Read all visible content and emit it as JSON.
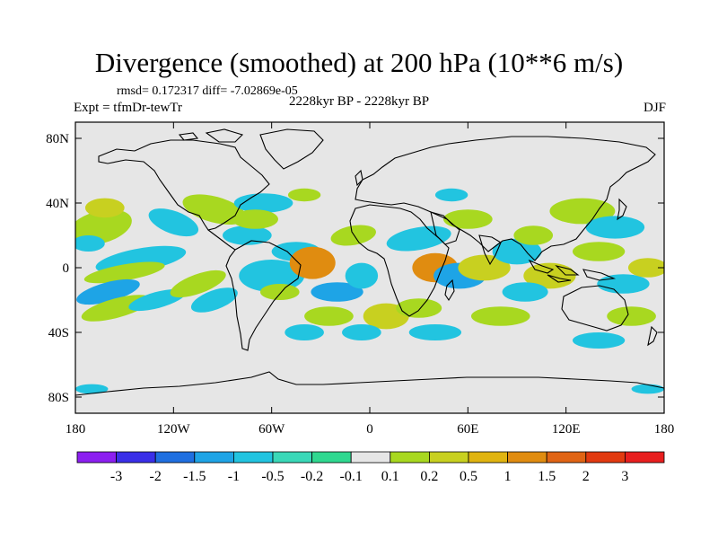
{
  "title": "Divergence (smoothed) at 200 hPa (10**6 m/s)",
  "stats": "rmsd= 0.172317 diff= -7.02869e-05",
  "expt": "Expt = tfmDr-tewTr",
  "period": "2228kyr BP - 2228kyr BP",
  "season": "DJF",
  "lat_labels": [
    "80N",
    "40N",
    "0",
    "40S",
    "80S"
  ],
  "lat_values": [
    80,
    40,
    0,
    -40,
    -80
  ],
  "lon_labels": [
    "180",
    "120W",
    "60W",
    "0",
    "60E",
    "120E",
    "180"
  ],
  "lon_values": [
    -180,
    -120,
    -60,
    0,
    60,
    120,
    180
  ],
  "colorbar": {
    "colors": [
      "#8c1ff0",
      "#3a2fe8",
      "#1f6fe0",
      "#1ea4e6",
      "#22c4e0",
      "#3ad8b8",
      "#2fd890",
      "#e6e6e6",
      "#a8d820",
      "#c8d020",
      "#e0b410",
      "#e08c10",
      "#e06414",
      "#e23a10",
      "#e81e1e"
    ],
    "labels": [
      "-3",
      "-2",
      "-1.5",
      "-1",
      "-0.5",
      "-0.2",
      "-0.1",
      "0.1",
      "0.2",
      "0.5",
      "1",
      "1.5",
      "2",
      "3"
    ]
  },
  "map_background": "#e6e6e6",
  "blobs": [
    {
      "lon": -165,
      "lat": 25,
      "rx": 20,
      "ry": 10,
      "level": "pos1",
      "rot": -15
    },
    {
      "lon": -162,
      "lat": 37,
      "rx": 12,
      "ry": 6,
      "level": "pos2",
      "rot": 0
    },
    {
      "lon": -172,
      "lat": 15,
      "rx": 10,
      "ry": 5,
      "level": "neg1",
      "rot": 0
    },
    {
      "lon": -140,
      "lat": 5,
      "rx": 28,
      "ry": 7,
      "level": "neg1",
      "rot": -10
    },
    {
      "lon": -150,
      "lat": -3,
      "rx": 25,
      "ry": 5,
      "level": "pos1",
      "rot": -10
    },
    {
      "lon": -160,
      "lat": -15,
      "rx": 20,
      "ry": 6,
      "level": "neg2",
      "rot": -15
    },
    {
      "lon": -155,
      "lat": -25,
      "rx": 22,
      "ry": 6,
      "level": "pos1",
      "rot": -15
    },
    {
      "lon": -130,
      "lat": -20,
      "rx": 18,
      "ry": 5,
      "level": "neg1",
      "rot": -15
    },
    {
      "lon": -105,
      "lat": -10,
      "rx": 18,
      "ry": 6,
      "level": "pos1",
      "rot": -20
    },
    {
      "lon": -95,
      "lat": -20,
      "rx": 15,
      "ry": 6,
      "level": "neg1",
      "rot": -20
    },
    {
      "lon": -120,
      "lat": 28,
      "rx": 16,
      "ry": 7,
      "level": "neg1",
      "rot": 20
    },
    {
      "lon": -95,
      "lat": 36,
      "rx": 20,
      "ry": 8,
      "level": "pos1",
      "rot": 15
    },
    {
      "lon": -75,
      "lat": 20,
      "rx": 15,
      "ry": 6,
      "level": "neg1",
      "rot": 0
    },
    {
      "lon": -65,
      "lat": 40,
      "rx": 18,
      "ry": 6,
      "level": "neg1",
      "rot": 0
    },
    {
      "lon": -70,
      "lat": 30,
      "rx": 14,
      "ry": 6,
      "level": "pos1",
      "rot": 0
    },
    {
      "lon": -40,
      "lat": 45,
      "rx": 10,
      "ry": 4,
      "level": "pos1",
      "rot": 0
    },
    {
      "lon": -60,
      "lat": -5,
      "rx": 20,
      "ry": 10,
      "level": "neg1",
      "rot": 0
    },
    {
      "lon": -45,
      "lat": 10,
      "rx": 15,
      "ry": 6,
      "level": "neg1",
      "rot": 0
    },
    {
      "lon": -35,
      "lat": 3,
      "rx": 14,
      "ry": 10,
      "level": "pos3",
      "rot": 0
    },
    {
      "lon": -55,
      "lat": -15,
      "rx": 12,
      "ry": 5,
      "level": "pos1",
      "rot": 0
    },
    {
      "lon": -20,
      "lat": -15,
      "rx": 16,
      "ry": 6,
      "level": "neg2",
      "rot": 0
    },
    {
      "lon": -25,
      "lat": -30,
      "rx": 15,
      "ry": 6,
      "level": "pos1",
      "rot": 0
    },
    {
      "lon": -40,
      "lat": -40,
      "rx": 12,
      "ry": 5,
      "level": "neg1",
      "rot": 0
    },
    {
      "lon": -10,
      "lat": 20,
      "rx": 14,
      "ry": 6,
      "level": "pos1",
      "rot": -10
    },
    {
      "lon": -5,
      "lat": -5,
      "rx": 10,
      "ry": 8,
      "level": "neg1",
      "rot": 0
    },
    {
      "lon": 10,
      "lat": -30,
      "rx": 14,
      "ry": 8,
      "level": "pos2",
      "rot": 0
    },
    {
      "lon": -5,
      "lat": -40,
      "rx": 12,
      "ry": 5,
      "level": "neg1",
      "rot": 0
    },
    {
      "lon": 30,
      "lat": 18,
      "rx": 20,
      "ry": 7,
      "level": "neg1",
      "rot": -10
    },
    {
      "lon": 40,
      "lat": 0,
      "rx": 14,
      "ry": 9,
      "level": "pos3",
      "rot": 0
    },
    {
      "lon": 55,
      "lat": -5,
      "rx": 16,
      "ry": 8,
      "level": "neg2",
      "rot": 0
    },
    {
      "lon": 70,
      "lat": 0,
      "rx": 16,
      "ry": 8,
      "level": "pos2",
      "rot": 0
    },
    {
      "lon": 30,
      "lat": -25,
      "rx": 14,
      "ry": 6,
      "level": "pos1",
      "rot": 0
    },
    {
      "lon": 40,
      "lat": -40,
      "rx": 16,
      "ry": 5,
      "level": "neg1",
      "rot": 0
    },
    {
      "lon": 60,
      "lat": 30,
      "rx": 15,
      "ry": 6,
      "level": "pos1",
      "rot": 0
    },
    {
      "lon": 50,
      "lat": 45,
      "rx": 10,
      "ry": 4,
      "level": "neg1",
      "rot": 0
    },
    {
      "lon": 90,
      "lat": 10,
      "rx": 15,
      "ry": 8,
      "level": "neg1",
      "rot": 0
    },
    {
      "lon": 100,
      "lat": 20,
      "rx": 12,
      "ry": 6,
      "level": "pos1",
      "rot": 0
    },
    {
      "lon": 110,
      "lat": -5,
      "rx": 16,
      "ry": 8,
      "level": "pos2",
      "rot": 0
    },
    {
      "lon": 95,
      "lat": -15,
      "rx": 14,
      "ry": 6,
      "level": "neg1",
      "rot": 0
    },
    {
      "lon": 80,
      "lat": -30,
      "rx": 18,
      "ry": 6,
      "level": "pos1",
      "rot": 0
    },
    {
      "lon": 130,
      "lat": 35,
      "rx": 20,
      "ry": 8,
      "level": "pos1",
      "rot": 0
    },
    {
      "lon": 150,
      "lat": 25,
      "rx": 18,
      "ry": 7,
      "level": "neg1",
      "rot": 0
    },
    {
      "lon": 140,
      "lat": 10,
      "rx": 16,
      "ry": 6,
      "level": "pos1",
      "rot": 0
    },
    {
      "lon": 155,
      "lat": -10,
      "rx": 16,
      "ry": 6,
      "level": "neg1",
      "rot": 0
    },
    {
      "lon": 160,
      "lat": -30,
      "rx": 15,
      "ry": 6,
      "level": "pos1",
      "rot": 0
    },
    {
      "lon": 140,
      "lat": -45,
      "rx": 16,
      "ry": 5,
      "level": "neg1",
      "rot": 0
    },
    {
      "lon": 170,
      "lat": 0,
      "rx": 12,
      "ry": 6,
      "level": "pos2",
      "rot": 0
    },
    {
      "lon": -170,
      "lat": -75,
      "rx": 10,
      "ry": 3,
      "level": "neg1",
      "rot": 0
    },
    {
      "lon": 170,
      "lat": -75,
      "rx": 10,
      "ry": 3,
      "level": "neg1",
      "rot": 0
    }
  ]
}
